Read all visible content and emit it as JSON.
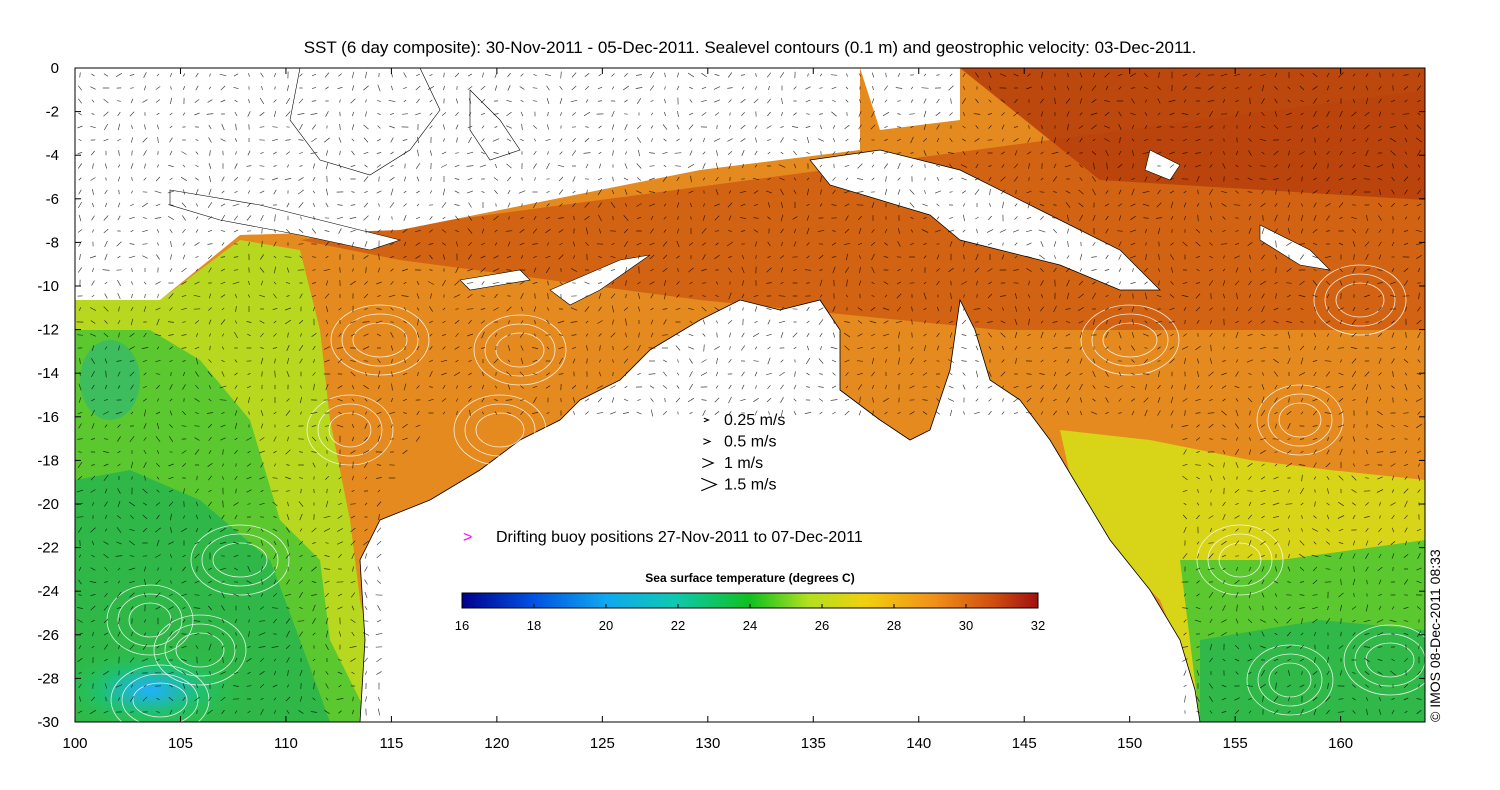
{
  "title": "SST (6 day composite): 30-Nov-2011 - 05-Dec-2011. Sealevel contours (0.1 m) and geostrophic velocity: 03-Dec-2011.",
  "axes": {
    "x_ticks": [
      "100",
      "105",
      "110",
      "115",
      "120",
      "125",
      "130",
      "135",
      "140",
      "145",
      "150",
      "155",
      "160"
    ],
    "y_ticks": [
      "0",
      "-2",
      "-4",
      "-6",
      "-8",
      "-10",
      "-12",
      "-14",
      "-16",
      "-18",
      "-20",
      "-22",
      "-24",
      "-26",
      "-28",
      "-30"
    ],
    "x_range": [
      100,
      164
    ],
    "y_range": [
      -30,
      0
    ]
  },
  "velocity_legend": [
    {
      "label": "0.25 m/s",
      "speed": 0.25
    },
    {
      "label": "0.5 m/s",
      "speed": 0.5
    },
    {
      "label": "1 m/s",
      "speed": 1
    },
    {
      "label": "1.5 m/s",
      "speed": 1.5
    }
  ],
  "buoy_legend": {
    "label": "Drifting buoy positions 27-Nov-2011 to 07-Dec-2011",
    "color": "#ff00ff"
  },
  "colorbar": {
    "title": "Sea surface temperature (degrees C)",
    "min": 16,
    "max": 32,
    "ticks": [
      "16",
      "18",
      "20",
      "22",
      "24",
      "26",
      "28",
      "30",
      "32"
    ]
  },
  "credit": "© IMOS 08-Dec-2011 08:33",
  "colors": {
    "land": "#ffffff",
    "warm": "#d2600c",
    "mid": "#f0a020",
    "cool": "#22bb44",
    "cold": "#33aaff"
  }
}
